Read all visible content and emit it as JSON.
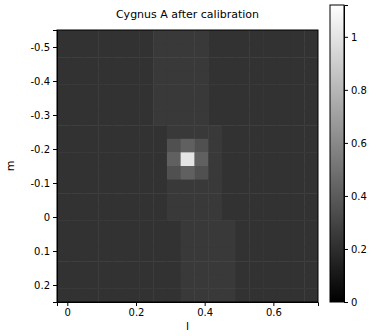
{
  "chart_data": {
    "type": "heatmap",
    "title": "Cygnus A after calibration",
    "xlabel": "l",
    "ylabel": "m",
    "xlim": [
      -0.03,
      0.73
    ],
    "ylim": [
      -0.55,
      0.25
    ],
    "xticks": [
      0,
      0.2,
      0.4,
      0.6
    ],
    "yticks": [
      -0.5,
      -0.4,
      -0.3,
      -0.2,
      -0.1,
      0,
      0.1,
      0.2
    ],
    "x": [
      -0.01,
      0.03,
      0.07,
      0.11,
      0.15,
      0.19,
      0.23,
      0.27,
      0.31,
      0.35,
      0.39,
      0.43,
      0.47,
      0.51,
      0.55,
      0.59,
      0.63,
      0.67,
      0.71
    ],
    "y": [
      -0.53,
      -0.49,
      -0.45,
      -0.41,
      -0.37,
      -0.33,
      -0.29,
      -0.25,
      -0.21,
      -0.17,
      -0.13,
      -0.09,
      -0.05,
      -0.01,
      0.03,
      0.07,
      0.11,
      0.15,
      0.19,
      0.23
    ],
    "cells": [
      [
        0.22,
        0.22,
        0.22,
        0.22,
        0.22,
        0.22,
        0.22,
        0.25,
        0.25,
        0.25,
        0.25,
        0.22,
        0.22,
        0.22,
        0.22,
        0.22,
        0.22,
        0.22,
        0.22
      ],
      [
        0.22,
        0.22,
        0.22,
        0.22,
        0.22,
        0.22,
        0.22,
        0.25,
        0.25,
        0.25,
        0.25,
        0.22,
        0.22,
        0.22,
        0.22,
        0.22,
        0.22,
        0.22,
        0.22
      ],
      [
        0.22,
        0.22,
        0.22,
        0.22,
        0.22,
        0.22,
        0.22,
        0.25,
        0.25,
        0.25,
        0.25,
        0.22,
        0.22,
        0.22,
        0.22,
        0.22,
        0.22,
        0.22,
        0.22
      ],
      [
        0.22,
        0.22,
        0.22,
        0.22,
        0.22,
        0.22,
        0.22,
        0.25,
        0.25,
        0.25,
        0.25,
        0.22,
        0.22,
        0.22,
        0.22,
        0.22,
        0.22,
        0.22,
        0.22
      ],
      [
        0.22,
        0.22,
        0.22,
        0.22,
        0.22,
        0.22,
        0.22,
        0.25,
        0.25,
        0.25,
        0.25,
        0.22,
        0.22,
        0.22,
        0.22,
        0.22,
        0.22,
        0.22,
        0.22
      ],
      [
        0.22,
        0.22,
        0.22,
        0.22,
        0.22,
        0.22,
        0.22,
        0.25,
        0.25,
        0.25,
        0.25,
        0.22,
        0.22,
        0.22,
        0.22,
        0.22,
        0.22,
        0.22,
        0.22
      ],
      [
        0.22,
        0.22,
        0.22,
        0.22,
        0.22,
        0.22,
        0.22,
        0.25,
        0.25,
        0.25,
        0.25,
        0.22,
        0.22,
        0.22,
        0.22,
        0.22,
        0.22,
        0.22,
        0.22
      ],
      [
        0.22,
        0.22,
        0.22,
        0.22,
        0.22,
        0.22,
        0.22,
        0.22,
        0.25,
        0.25,
        0.25,
        0.25,
        0.22,
        0.22,
        0.22,
        0.22,
        0.22,
        0.22,
        0.22
      ],
      [
        0.22,
        0.22,
        0.22,
        0.22,
        0.22,
        0.22,
        0.22,
        0.22,
        0.35,
        0.42,
        0.35,
        0.25,
        0.22,
        0.22,
        0.22,
        0.22,
        0.22,
        0.22,
        0.22
      ],
      [
        0.22,
        0.22,
        0.22,
        0.22,
        0.22,
        0.22,
        0.22,
        0.22,
        0.42,
        1.0,
        0.42,
        0.25,
        0.22,
        0.22,
        0.22,
        0.22,
        0.22,
        0.22,
        0.22
      ],
      [
        0.22,
        0.22,
        0.22,
        0.22,
        0.22,
        0.22,
        0.22,
        0.22,
        0.35,
        0.42,
        0.35,
        0.25,
        0.22,
        0.22,
        0.22,
        0.22,
        0.22,
        0.22,
        0.22
      ],
      [
        0.22,
        0.22,
        0.22,
        0.22,
        0.22,
        0.22,
        0.22,
        0.22,
        0.25,
        0.25,
        0.25,
        0.25,
        0.22,
        0.22,
        0.22,
        0.22,
        0.22,
        0.22,
        0.22
      ],
      [
        0.22,
        0.22,
        0.22,
        0.22,
        0.22,
        0.22,
        0.22,
        0.22,
        0.25,
        0.25,
        0.25,
        0.25,
        0.22,
        0.22,
        0.22,
        0.22,
        0.22,
        0.22,
        0.22
      ],
      [
        0.22,
        0.22,
        0.22,
        0.22,
        0.22,
        0.22,
        0.22,
        0.22,
        0.25,
        0.25,
        0.25,
        0.25,
        0.22,
        0.22,
        0.22,
        0.22,
        0.22,
        0.22,
        0.22
      ],
      [
        0.22,
        0.22,
        0.22,
        0.22,
        0.22,
        0.22,
        0.22,
        0.22,
        0.22,
        0.25,
        0.25,
        0.25,
        0.25,
        0.22,
        0.22,
        0.22,
        0.22,
        0.22,
        0.22
      ],
      [
        0.22,
        0.22,
        0.22,
        0.22,
        0.22,
        0.22,
        0.22,
        0.22,
        0.22,
        0.25,
        0.25,
        0.25,
        0.25,
        0.22,
        0.22,
        0.22,
        0.22,
        0.22,
        0.22
      ],
      [
        0.22,
        0.22,
        0.22,
        0.22,
        0.22,
        0.22,
        0.22,
        0.22,
        0.22,
        0.25,
        0.25,
        0.25,
        0.25,
        0.22,
        0.22,
        0.22,
        0.22,
        0.22,
        0.22
      ],
      [
        0.22,
        0.22,
        0.22,
        0.22,
        0.22,
        0.22,
        0.22,
        0.22,
        0.22,
        0.25,
        0.25,
        0.25,
        0.25,
        0.22,
        0.22,
        0.22,
        0.22,
        0.22,
        0.22
      ],
      [
        0.22,
        0.22,
        0.22,
        0.22,
        0.22,
        0.22,
        0.22,
        0.22,
        0.22,
        0.25,
        0.25,
        0.25,
        0.25,
        0.22,
        0.22,
        0.22,
        0.22,
        0.22,
        0.22
      ],
      [
        0.22,
        0.22,
        0.22,
        0.22,
        0.22,
        0.22,
        0.22,
        0.22,
        0.22,
        0.25,
        0.25,
        0.25,
        0.25,
        0.22,
        0.22,
        0.22,
        0.22,
        0.22,
        0.22
      ]
    ],
    "colorbar": {
      "range": [
        0,
        1.12
      ],
      "ticks": [
        0,
        0.2,
        0.4,
        0.6,
        0.8,
        1
      ]
    }
  }
}
